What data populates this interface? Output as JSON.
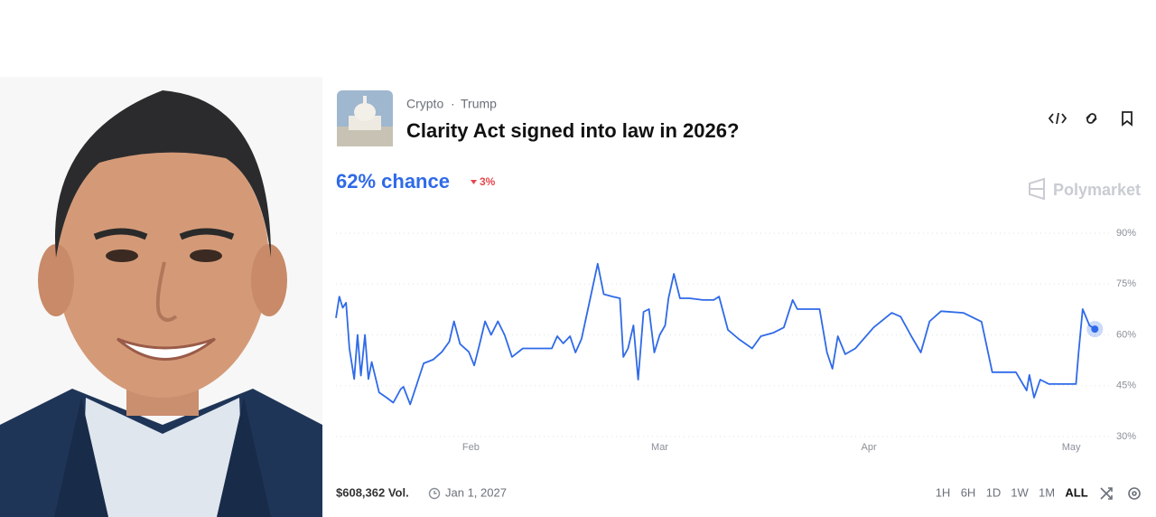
{
  "header": {
    "tags": [
      "Crypto",
      "Trump"
    ],
    "title": "Clarity Act signed into law in 2026?"
  },
  "chance": "62% chance",
  "change": "3%",
  "brand": "Polymarket",
  "footer": {
    "volume": "$608,362 Vol.",
    "end_date": "Jan 1, 2027",
    "ranges": [
      "1H",
      "6H",
      "1D",
      "1W",
      "1M",
      "ALL"
    ]
  },
  "chart_data": {
    "type": "line",
    "color": "#2f6ae8",
    "grid": true,
    "x": [
      12,
      12.5,
      13,
      13.5,
      14,
      14.7,
      15.2,
      15.7,
      16.3,
      16.8,
      17.3,
      18.4,
      19.5,
      20.5,
      21.6,
      22,
      23,
      24,
      25,
      26.4,
      27.7,
      28.8,
      29.5,
      30.4,
      31.7,
      32.5,
      33.3,
      34.1,
      35,
      36,
      37,
      38.1,
      39.7,
      42.4,
      44,
      44.8,
      45.7,
      46.7,
      47.5,
      48.4,
      49.7,
      50.8,
      51.7,
      53,
      54.1,
      54.6,
      55.3,
      56.1,
      56.8,
      57.6,
      58.4,
      59.2,
      60,
      60.8,
      61.3,
      62.1,
      63,
      64.4,
      66.4,
      68,
      68.8,
      70.1,
      71.7,
      73.7,
      75,
      76.8,
      78.4,
      79.7,
      80.4,
      81.7,
      83.7,
      84.8,
      85.6,
      86.4,
      87.5,
      89,
      91.7,
      94.4,
      95.7,
      97.3,
      98.7,
      100,
      101.7,
      105,
      107.7,
      109.3,
      112.8,
      114.4,
      114.8,
      115.5,
      116.4,
      117.7,
      121.7,
      122.1,
      122.7,
      123.7,
      124.5
    ],
    "values": [
      65,
      71.3,
      68,
      69.5,
      56,
      47,
      60,
      48,
      60,
      47,
      52,
      43,
      41.5,
      40,
      44,
      44.7,
      39.5,
      45.5,
      51.6,
      52.7,
      55,
      58,
      64,
      57.3,
      55,
      51,
      57.3,
      64,
      60,
      64,
      60,
      53.5,
      56,
      56,
      56,
      59.6,
      57.5,
      59.6,
      54.8,
      58.8,
      70.8,
      81,
      72,
      71.3,
      70.8,
      53.5,
      56,
      62.8,
      46.8,
      66.8,
      67.6,
      54.8,
      60,
      62.8,
      70.8,
      78,
      70.8,
      70.8,
      70.3,
      70.3,
      71.3,
      61.5,
      58.8,
      56,
      59.6,
      60.6,
      62.2,
      70.3,
      67.6,
      67.6,
      67.6,
      54.8,
      50,
      59.6,
      54.3,
      56,
      62.2,
      66.5,
      65.4,
      59.6,
      54.8,
      64,
      67,
      66.5,
      63.9,
      49,
      49,
      43.6,
      48.2,
      41.5,
      46.8,
      45.5,
      45.5,
      54.8,
      67.6,
      62.8,
      61.7
    ],
    "xlim": [
      12,
      125
    ],
    "xticks": [
      {
        "value": 32,
        "label": "Feb"
      },
      {
        "value": 60,
        "label": "Mar"
      },
      {
        "value": 91,
        "label": "Apr"
      },
      {
        "value": 121,
        "label": "May"
      }
    ],
    "ylim": [
      30,
      90
    ],
    "yticks": [
      {
        "value": 90,
        "label": "90%"
      },
      {
        "value": 75,
        "label": "75%"
      },
      {
        "value": 60,
        "label": "60%"
      },
      {
        "value": 45,
        "label": "45%"
      },
      {
        "value": 30,
        "label": "30%"
      }
    ]
  }
}
